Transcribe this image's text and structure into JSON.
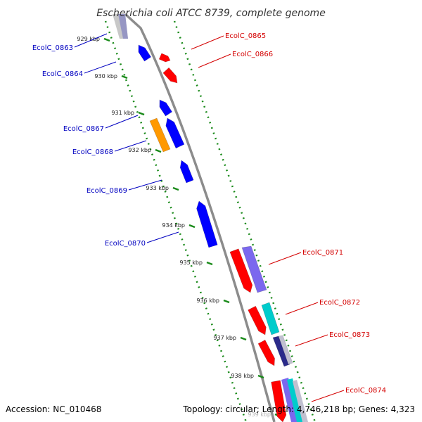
{
  "title": "Escherichia coli ATCC 8739, complete genome",
  "accession": "Accession: NC_010468",
  "topology": "Topology: circular; Length: 4,746,218 bp; Genes: 4,323",
  "colors": {
    "backbone": "#8c8c8c",
    "ruler": "#1a8a1a",
    "forward_label": "#d40000",
    "reverse_label": "#0000c0",
    "forward_cds": "#ff0000",
    "reverse_cds": "#0000ff",
    "orange_cds": "#ff9900",
    "purple_cds": "#7b68ee",
    "cyan_cds": "#00cccc",
    "navy_cds": "#2b2b8a"
  },
  "ticks": [
    {
      "label": "929 kbp"
    },
    {
      "label": "930 kbp"
    },
    {
      "label": "931 kbp"
    },
    {
      "label": "932 kbp"
    },
    {
      "label": "933 kbp"
    },
    {
      "label": "934 kbp"
    },
    {
      "label": "935 kbp"
    },
    {
      "label": "936 kbp"
    },
    {
      "label": "937 kbp"
    },
    {
      "label": "938 kbp"
    },
    {
      "label": "939 kbp"
    }
  ],
  "reverse_genes": [
    {
      "label": "EcolC_0863"
    },
    {
      "label": "EcolC_0864"
    },
    {
      "label": "EcolC_0867"
    },
    {
      "label": "EcolC_0868"
    },
    {
      "label": "EcolC_0869"
    },
    {
      "label": "EcolC_0870"
    }
  ],
  "forward_genes": [
    {
      "label": "EcolC_0865"
    },
    {
      "label": "EcolC_0866"
    },
    {
      "label": "EcolC_0871"
    },
    {
      "label": "EcolC_0872"
    },
    {
      "label": "EcolC_0873"
    },
    {
      "label": "EcolC_0874"
    }
  ]
}
